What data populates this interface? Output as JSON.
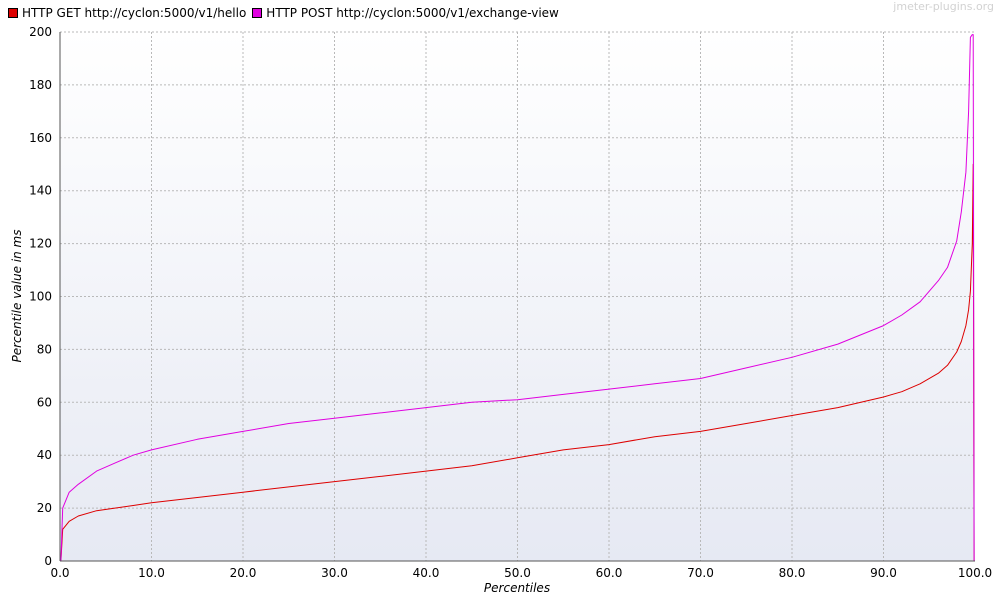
{
  "watermark": "jmeter-plugins.org",
  "colors": {
    "plot_bg_top": "#ffffff",
    "plot_bg_bottom": "#e6e9f3",
    "grid": "#b9b9b9",
    "axis": "#555555"
  },
  "chart_data": {
    "type": "line",
    "xlabel": "Percentiles",
    "ylabel": "Percentile value in ms",
    "xlim": [
      0,
      100
    ],
    "ylim": [
      0,
      200
    ],
    "x_ticks": [
      "0.0",
      "10.0",
      "20.0",
      "30.0",
      "40.0",
      "50.0",
      "60.0",
      "70.0",
      "80.0",
      "90.0",
      "100.0"
    ],
    "y_ticks": [
      "0",
      "20",
      "40",
      "60",
      "80",
      "100",
      "120",
      "140",
      "160",
      "180",
      "200"
    ],
    "grid": true,
    "legend_position": "top-left",
    "series": [
      {
        "name": "HTTP GET http://cyclon:5000/v1/hello",
        "color": "#dd0000",
        "x": [
          0.1,
          0.3,
          1,
          2,
          4,
          6,
          8,
          10,
          15,
          20,
          25,
          30,
          35,
          40,
          45,
          50,
          55,
          60,
          65,
          70,
          75,
          80,
          85,
          90,
          92,
          94,
          96,
          97,
          98,
          98.5,
          99,
          99.3,
          99.5,
          99.7,
          99.8,
          99.9
        ],
        "y": [
          0,
          12,
          15,
          17,
          19,
          20,
          21,
          22,
          24,
          26,
          28,
          30,
          32,
          34,
          36,
          39,
          42,
          44,
          47,
          49,
          52,
          55,
          58,
          62,
          64,
          67,
          71,
          74,
          79,
          83,
          89,
          95,
          102,
          120,
          150,
          0
        ]
      },
      {
        "name": "HTTP POST http://cyclon:5000/v1/exchange-view",
        "color": "#e000e0",
        "x": [
          0.1,
          0.3,
          1,
          2,
          4,
          6,
          8,
          10,
          15,
          20,
          25,
          30,
          35,
          40,
          45,
          50,
          55,
          60,
          65,
          70,
          75,
          80,
          85,
          90,
          92,
          94,
          96,
          97,
          98,
          98.5,
          99,
          99.3,
          99.5,
          99.7,
          99.8,
          99.9
        ],
        "y": [
          0,
          20,
          26,
          29,
          34,
          37,
          40,
          42,
          46,
          49,
          52,
          54,
          56,
          58,
          60,
          61,
          63,
          65,
          67,
          69,
          73,
          77,
          82,
          89,
          93,
          98,
          106,
          111,
          121,
          132,
          147,
          170,
          198,
          199,
          199,
          0
        ]
      }
    ]
  }
}
